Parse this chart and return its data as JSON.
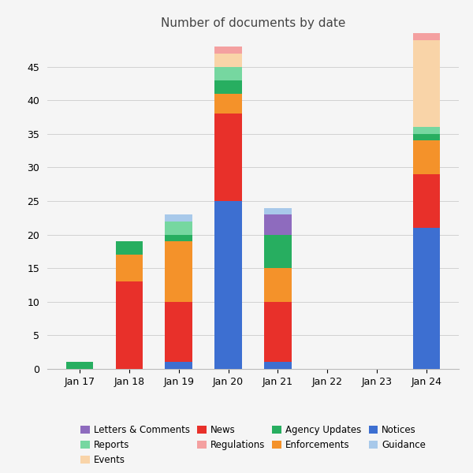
{
  "title": "Number of documents by date",
  "dates": [
    "Jan 17",
    "Jan 18",
    "Jan 19",
    "Jan 20",
    "Jan 21",
    "Jan 22",
    "Jan 23",
    "Jan 24"
  ],
  "colors": {
    "Notices": "#3D6FD1",
    "News": "#E8302A",
    "Enforcements": "#F4922A",
    "Agency Updates": "#27AE60",
    "Reports": "#76D7A0",
    "Events": "#F9D4A8",
    "Letters & Comments": "#8E6BBE",
    "Guidance": "#A8C9EA",
    "Regulations": "#F4A0A0"
  },
  "data": {
    "Notices": [
      0,
      0,
      1,
      25,
      1,
      0,
      0,
      21
    ],
    "News": [
      0,
      13,
      9,
      13,
      9,
      0,
      0,
      8
    ],
    "Enforcements": [
      0,
      4,
      9,
      3,
      5,
      0,
      0,
      5
    ],
    "Agency Updates": [
      1,
      2,
      1,
      2,
      5,
      0,
      0,
      1
    ],
    "Reports": [
      0,
      0,
      2,
      2,
      0,
      0,
      0,
      1
    ],
    "Events": [
      0,
      0,
      0,
      2,
      0,
      0,
      0,
      13
    ],
    "Letters & Comments": [
      0,
      0,
      0,
      0,
      3,
      0,
      0,
      0
    ],
    "Guidance": [
      0,
      0,
      1,
      0,
      1,
      0,
      0,
      0
    ],
    "Regulations": [
      0,
      0,
      0,
      1,
      0,
      0,
      0,
      1
    ]
  },
  "stack_order": [
    "Notices",
    "News",
    "Enforcements",
    "Agency Updates",
    "Reports",
    "Events",
    "Letters & Comments",
    "Guidance",
    "Regulations"
  ],
  "legend_order": [
    "Letters & Comments",
    "Reports",
    "Events",
    "News",
    "Regulations",
    "Agency Updates",
    "Enforcements",
    "Notices",
    "Guidance"
  ],
  "ylim": [
    0,
    50
  ],
  "yticks": [
    0,
    5,
    10,
    15,
    20,
    25,
    30,
    35,
    40,
    45
  ],
  "bar_width": 0.55,
  "bg_color": "#F5F5F5",
  "grid_color": "#CCCCCC",
  "title_fontsize": 11,
  "tick_fontsize": 9,
  "legend_fontsize": 8.5
}
